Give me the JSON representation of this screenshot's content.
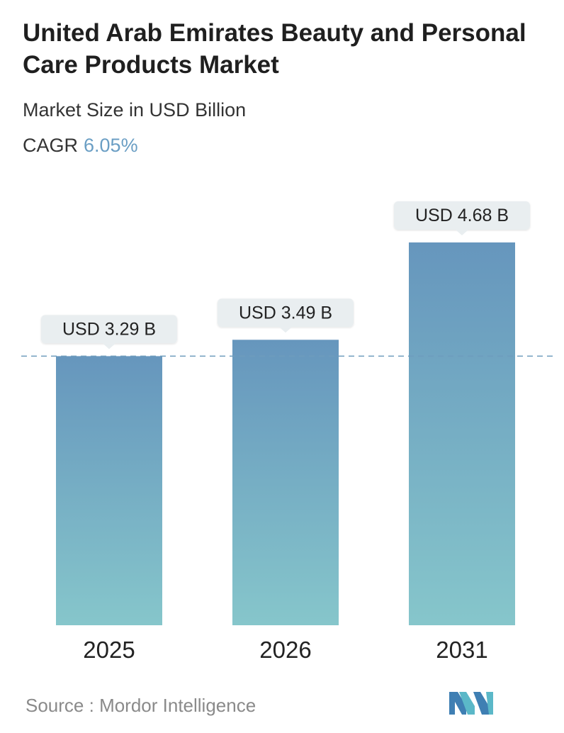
{
  "header": {
    "title": "United Arab Emirates Beauty and Personal Care Products Market",
    "subtitle": "Market Size in USD Billion",
    "cagr_label": "CAGR",
    "cagr_value": "6.05%"
  },
  "footer": {
    "source_label": "Source :",
    "source_name": "Mordor Intelligence",
    "logo_name": "mordor-intelligence-logo"
  },
  "colors": {
    "bar_top": "#6696bd",
    "bar_bottom": "#86c6cb",
    "callout_bg": "#e9eef0",
    "reference_line": "#6e9cbd",
    "cagr_value": "#6a9ec4"
  },
  "chart_data": {
    "type": "bar",
    "categories": [
      "2025",
      "2026",
      "2031"
    ],
    "values": [
      3.29,
      3.49,
      4.68
    ],
    "data_labels": [
      "USD 3.29 B",
      "USD 3.49 B",
      "USD 4.68 B"
    ],
    "ylim": [
      0,
      4.68
    ],
    "grid": false,
    "reference_line": {
      "style": "dashed",
      "value": 3.29
    }
  }
}
